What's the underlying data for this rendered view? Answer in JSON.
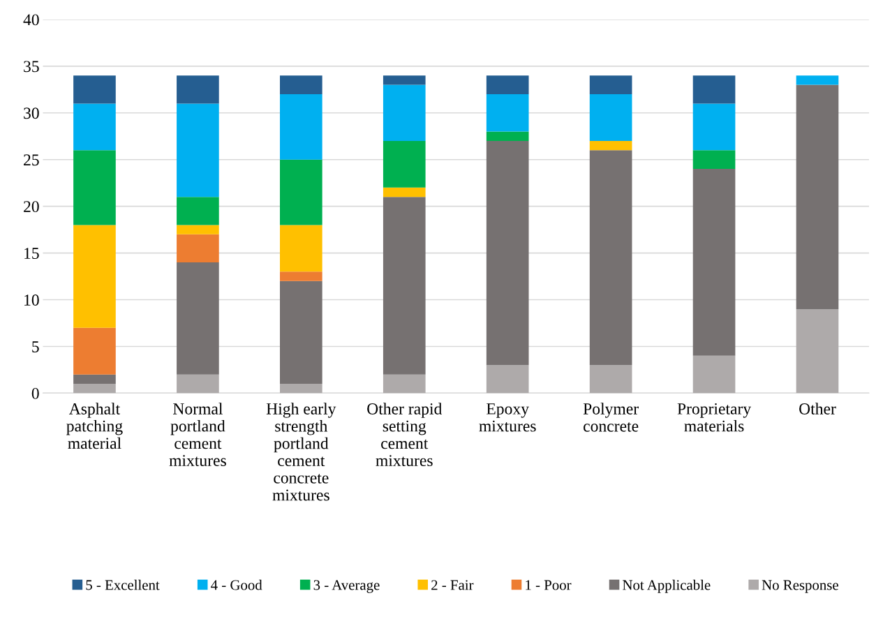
{
  "chart_data": {
    "type": "bar",
    "stacked": true,
    "categories": [
      "Asphalt patching material",
      "Normal portland cement mixtures",
      "High early strength portland cement concrete mixtures",
      "Other rapid setting cement mixtures",
      "Epoxy mixtures",
      "Polymer concrete",
      "Proprietary materials",
      "Other"
    ],
    "series": [
      {
        "name": "No Response",
        "color": "#aeaaaa",
        "values": [
          1,
          2,
          1,
          2,
          3,
          3,
          4,
          9
        ]
      },
      {
        "name": "Not Applicable",
        "color": "#767171",
        "values": [
          1,
          12,
          11,
          19,
          24,
          23,
          20,
          24
        ]
      },
      {
        "name": "1 - Poor",
        "color": "#ed7d31",
        "values": [
          5,
          3,
          1,
          0,
          0,
          0,
          0,
          0
        ]
      },
      {
        "name": "2 - Fair",
        "color": "#ffc000",
        "values": [
          11,
          1,
          5,
          1,
          0,
          1,
          0,
          0
        ]
      },
      {
        "name": "3 - Average",
        "color": "#00b050",
        "values": [
          8,
          3,
          7,
          5,
          1,
          0,
          2,
          0
        ]
      },
      {
        "name": "4 - Good",
        "color": "#00b0f0",
        "values": [
          5,
          10,
          7,
          6,
          4,
          5,
          5,
          1
        ]
      },
      {
        "name": "5 - Excellent",
        "color": "#255e91",
        "values": [
          3,
          3,
          2,
          1,
          2,
          2,
          3,
          0
        ]
      }
    ],
    "ylim": [
      0,
      40
    ],
    "yticks": [
      0,
      5,
      10,
      15,
      20,
      25,
      30,
      35,
      40
    ],
    "grid": "y",
    "legend": "bottom"
  }
}
